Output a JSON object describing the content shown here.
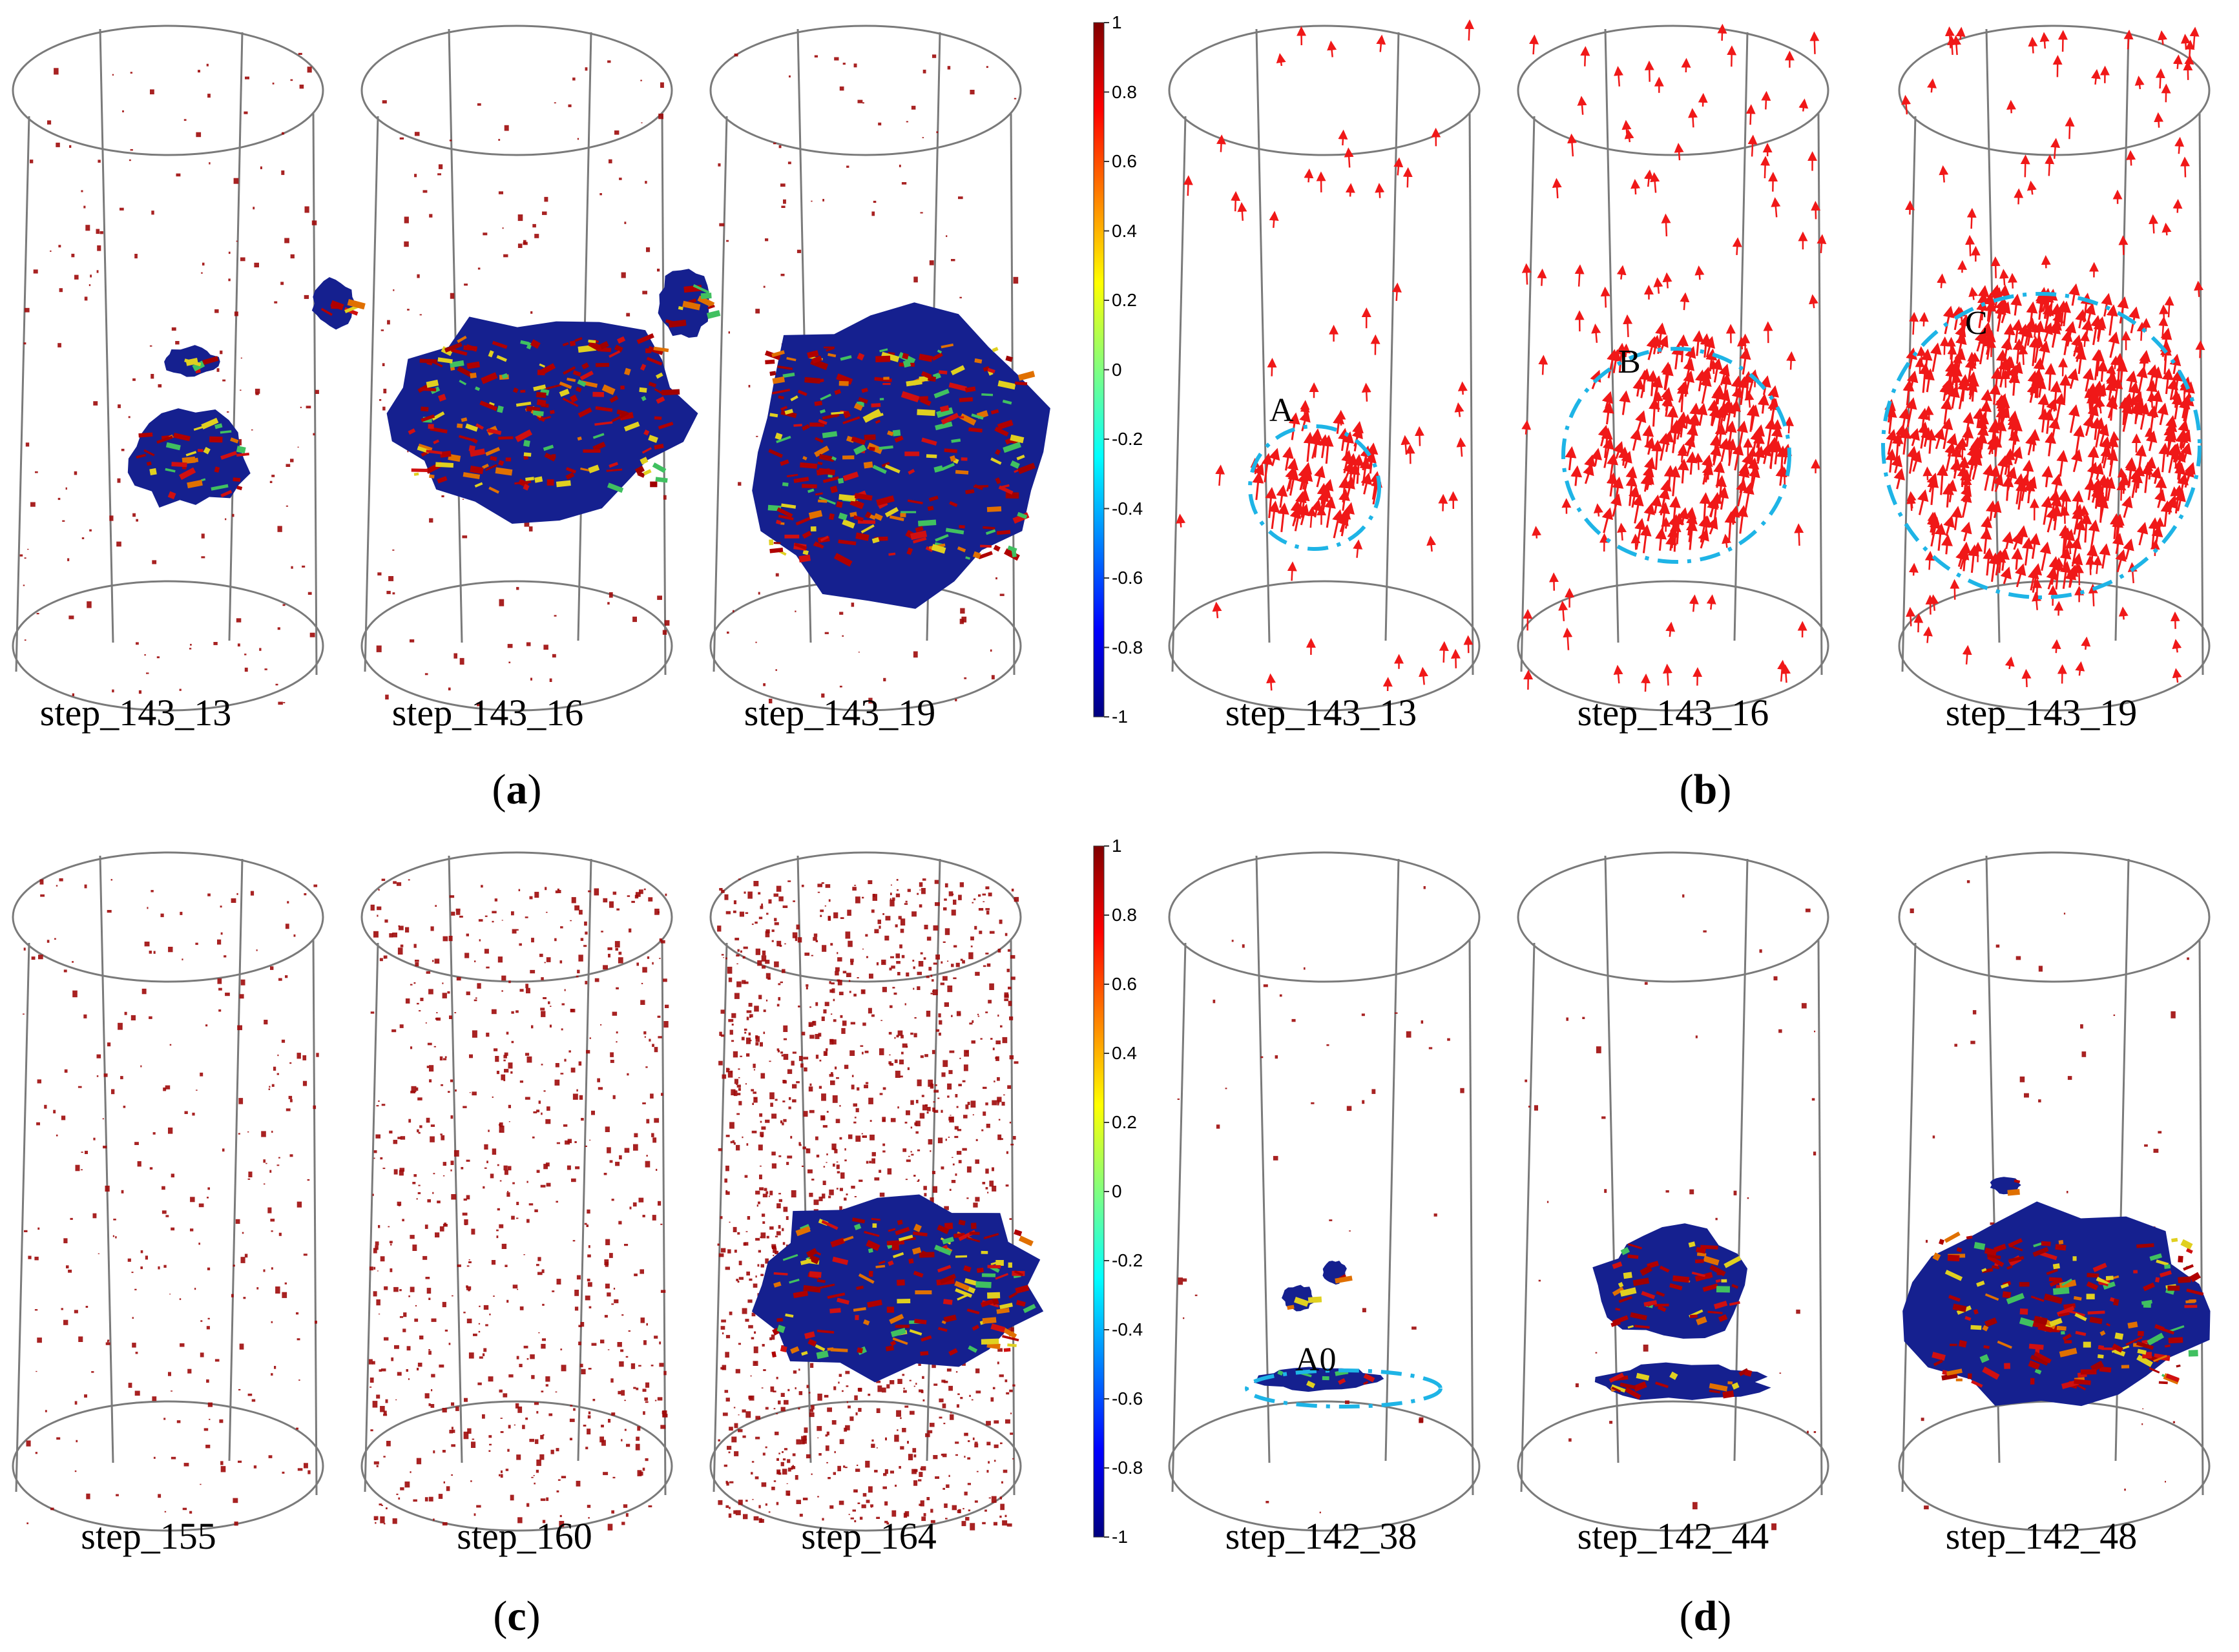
{
  "colors": {
    "outline": "#7a7a7a",
    "particle_red": "#9e0a0a",
    "arrow_red": "#f01818",
    "mass_blue": "#15208f",
    "circle_cyan": "#1eb4e6"
  },
  "colorbar": {
    "min": -1,
    "max": 1,
    "ticks": [
      "1",
      "0.8",
      "0.6",
      "0.4",
      "0.2",
      "0",
      "-0.2",
      "-0.4",
      "-0.6",
      "-0.8",
      "-1"
    ],
    "stops": [
      "#7f0000",
      "#ff0000",
      "#ff8000",
      "#ffff00",
      "#80ff80",
      "#00ffff",
      "#0080ff",
      "#0000ff",
      "#00007f"
    ]
  },
  "panels": [
    {
      "id": "a",
      "label": "a",
      "steps": [
        "step_143_13",
        "step_143_16",
        "step_143_19"
      ],
      "mass_level": [
        0.25,
        0.55,
        0.85
      ]
    },
    {
      "id": "b",
      "label": "b",
      "steps": [
        "step_143_13",
        "step_143_16",
        "step_143_19"
      ],
      "annotations": [
        "A",
        "B",
        "C"
      ],
      "arrow_density": [
        0.3,
        0.55,
        1.0
      ]
    },
    {
      "id": "c",
      "label": "c",
      "steps": [
        "step_155",
        "step_160",
        "step_164"
      ],
      "particle_density": [
        0.25,
        0.55,
        1.0
      ]
    },
    {
      "id": "d",
      "label": "d",
      "steps": [
        "step_142_38",
        "step_142_44",
        "step_142_48"
      ],
      "annotations": [
        "A0"
      ],
      "mass_level": [
        0.1,
        0.45,
        0.8
      ]
    }
  ]
}
